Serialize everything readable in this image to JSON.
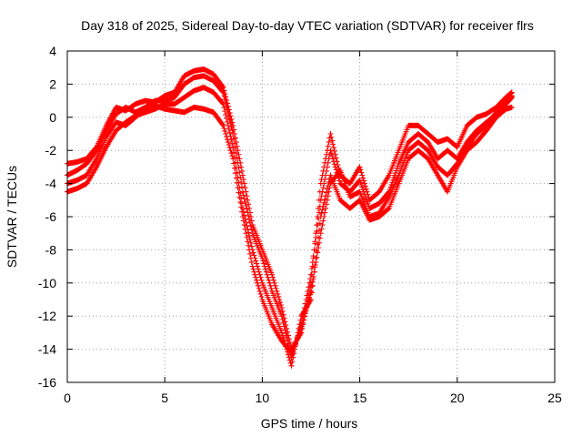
{
  "chart_data": {
    "type": "scatter",
    "title": "Day 318 of 2025, Sidereal Day-to-day VTEC variation (SDTVAR) for receiver flrs",
    "xlabel": "GPS time / hours",
    "ylabel": "SDTVAR / TECUs",
    "xlim": [
      0,
      25
    ],
    "ylim": [
      -16,
      4
    ],
    "xticks": [
      0,
      5,
      10,
      15,
      20,
      25
    ],
    "yticks": [
      -16,
      -14,
      -12,
      -10,
      -8,
      -6,
      -4,
      -2,
      0,
      2,
      4
    ],
    "grid": true,
    "legend": "none",
    "marker": "plus",
    "color": "#ff0000",
    "series": [
      {
        "x": [
          0.0,
          0.5,
          1.0,
          1.5,
          2.0,
          2.5,
          3.0,
          3.5,
          4.0,
          4.5,
          5.0,
          5.5,
          6.0,
          6.5,
          7.0,
          7.5,
          8.0,
          8.5,
          9.0,
          9.5,
          10.0,
          10.5,
          11.0,
          11.5,
          12.0,
          12.5,
          13.0,
          13.5,
          14.0,
          14.5,
          15.0,
          15.5,
          16.0,
          16.5,
          17.0,
          17.5,
          18.0,
          18.5,
          19.0,
          19.5,
          20.0,
          20.5,
          21.0,
          21.5,
          22.0,
          22.5,
          22.8
        ],
        "values": [
          -2.8,
          -2.7,
          -2.5,
          -1.8,
          -0.5,
          0.6,
          0.4,
          0.8,
          1.0,
          0.9,
          1.3,
          1.5,
          2.5,
          2.8,
          2.9,
          2.6,
          1.8,
          -0.5,
          -3.5,
          -6.5,
          -8.0,
          -9.5,
          -11.5,
          -14.0,
          -13.0,
          -10.0,
          -4.0,
          -1.0,
          -3.5,
          -4.0,
          -3.0,
          -5.0,
          -4.5,
          -3.5,
          -2.0,
          -0.5,
          -0.5,
          -1.0,
          -1.5,
          -1.3,
          -1.8,
          -0.5,
          0.0,
          0.2,
          0.6,
          1.2,
          1.5
        ]
      },
      {
        "x": [
          0.0,
          0.5,
          1.0,
          1.5,
          2.0,
          2.5,
          3.0,
          3.5,
          4.0,
          4.5,
          5.0,
          5.5,
          6.0,
          6.5,
          7.0,
          7.5,
          8.0,
          8.5,
          9.0,
          9.5,
          10.0,
          10.5,
          11.0,
          11.5,
          12.0,
          12.5,
          13.0,
          13.5,
          14.0,
          14.5,
          15.0,
          15.5,
          16.0,
          16.5,
          17.0,
          17.5,
          18.0,
          18.5,
          19.0,
          19.5,
          20.0,
          20.5,
          21.0,
          21.5,
          22.0,
          22.5,
          22.8
        ],
        "values": [
          -3.5,
          -3.2,
          -2.8,
          -2.0,
          -0.8,
          0.2,
          0.6,
          0.3,
          0.6,
          1.0,
          1.0,
          1.2,
          2.0,
          2.4,
          2.5,
          2.2,
          1.5,
          -1.0,
          -4.5,
          -7.0,
          -8.5,
          -10.5,
          -12.0,
          -14.5,
          -12.5,
          -9.5,
          -5.0,
          -2.0,
          -4.0,
          -4.5,
          -3.8,
          -5.5,
          -5.2,
          -4.5,
          -2.8,
          -1.5,
          -1.0,
          -1.5,
          -2.5,
          -2.0,
          -2.5,
          -1.5,
          -0.8,
          -0.3,
          0.2,
          0.8,
          1.2
        ]
      },
      {
        "x": [
          0.0,
          0.5,
          1.0,
          1.5,
          2.0,
          2.5,
          3.0,
          3.5,
          4.0,
          4.5,
          5.0,
          5.5,
          6.0,
          6.5,
          7.0,
          7.5,
          8.0,
          8.5,
          9.0,
          9.5,
          10.0,
          10.5,
          11.0,
          11.5,
          12.0,
          12.5,
          13.0,
          13.5,
          14.0,
          14.5,
          15.0,
          15.5,
          16.0,
          16.5,
          17.0,
          17.5,
          18.0,
          18.5,
          19.0,
          19.5,
          20.0,
          20.5,
          21.0,
          21.5,
          22.0,
          22.5,
          22.8
        ],
        "values": [
          -4.5,
          -4.3,
          -4.0,
          -3.0,
          -1.8,
          -0.8,
          -0.3,
          0.1,
          0.3,
          0.5,
          0.8,
          0.8,
          1.2,
          1.6,
          1.8,
          1.5,
          0.8,
          -1.8,
          -5.5,
          -8.0,
          -10.0,
          -11.5,
          -13.0,
          -15.0,
          -12.0,
          -11.0,
          -6.0,
          -3.5,
          -5.0,
          -5.5,
          -5.0,
          -6.2,
          -6.0,
          -5.5,
          -4.0,
          -2.5,
          -2.0,
          -2.5,
          -3.5,
          -4.5,
          -3.0,
          -2.0,
          -1.5,
          -0.8,
          0.0,
          0.5,
          0.6
        ]
      },
      {
        "x": [
          0.0,
          0.5,
          1.0,
          1.5,
          2.0,
          2.5,
          3.0,
          3.5,
          4.0,
          4.5,
          5.0,
          5.5,
          6.0,
          6.5,
          7.0,
          7.5,
          8.0,
          8.5,
          9.0,
          9.5,
          10.0,
          10.5,
          11.0,
          11.5,
          12.0,
          12.5,
          13.0,
          13.5,
          14.0,
          14.5,
          15.0,
          15.5,
          16.0,
          16.5,
          17.0,
          17.5,
          18.0,
          18.5,
          19.0,
          19.5,
          20.0,
          20.5,
          21.0,
          21.5,
          22.0,
          22.5,
          22.8
        ],
        "values": [
          -4.0,
          -3.8,
          -3.5,
          -2.5,
          -1.2,
          -0.3,
          -0.5,
          0.0,
          0.5,
          0.7,
          0.5,
          0.4,
          0.3,
          0.6,
          0.5,
          0.3,
          -0.5,
          -2.5,
          -6.0,
          -9.0,
          -11.0,
          -12.5,
          -13.5,
          -14.2,
          -12.8,
          -10.5,
          -7.0,
          -4.0,
          -3.2,
          -4.8,
          -4.5,
          -6.0,
          -5.8,
          -4.8,
          -3.5,
          -2.0,
          -1.5,
          -2.0,
          -3.0,
          -3.5,
          -2.8,
          -1.8,
          -1.0,
          -0.5,
          0.3,
          1.0,
          1.3
        ]
      }
    ]
  }
}
